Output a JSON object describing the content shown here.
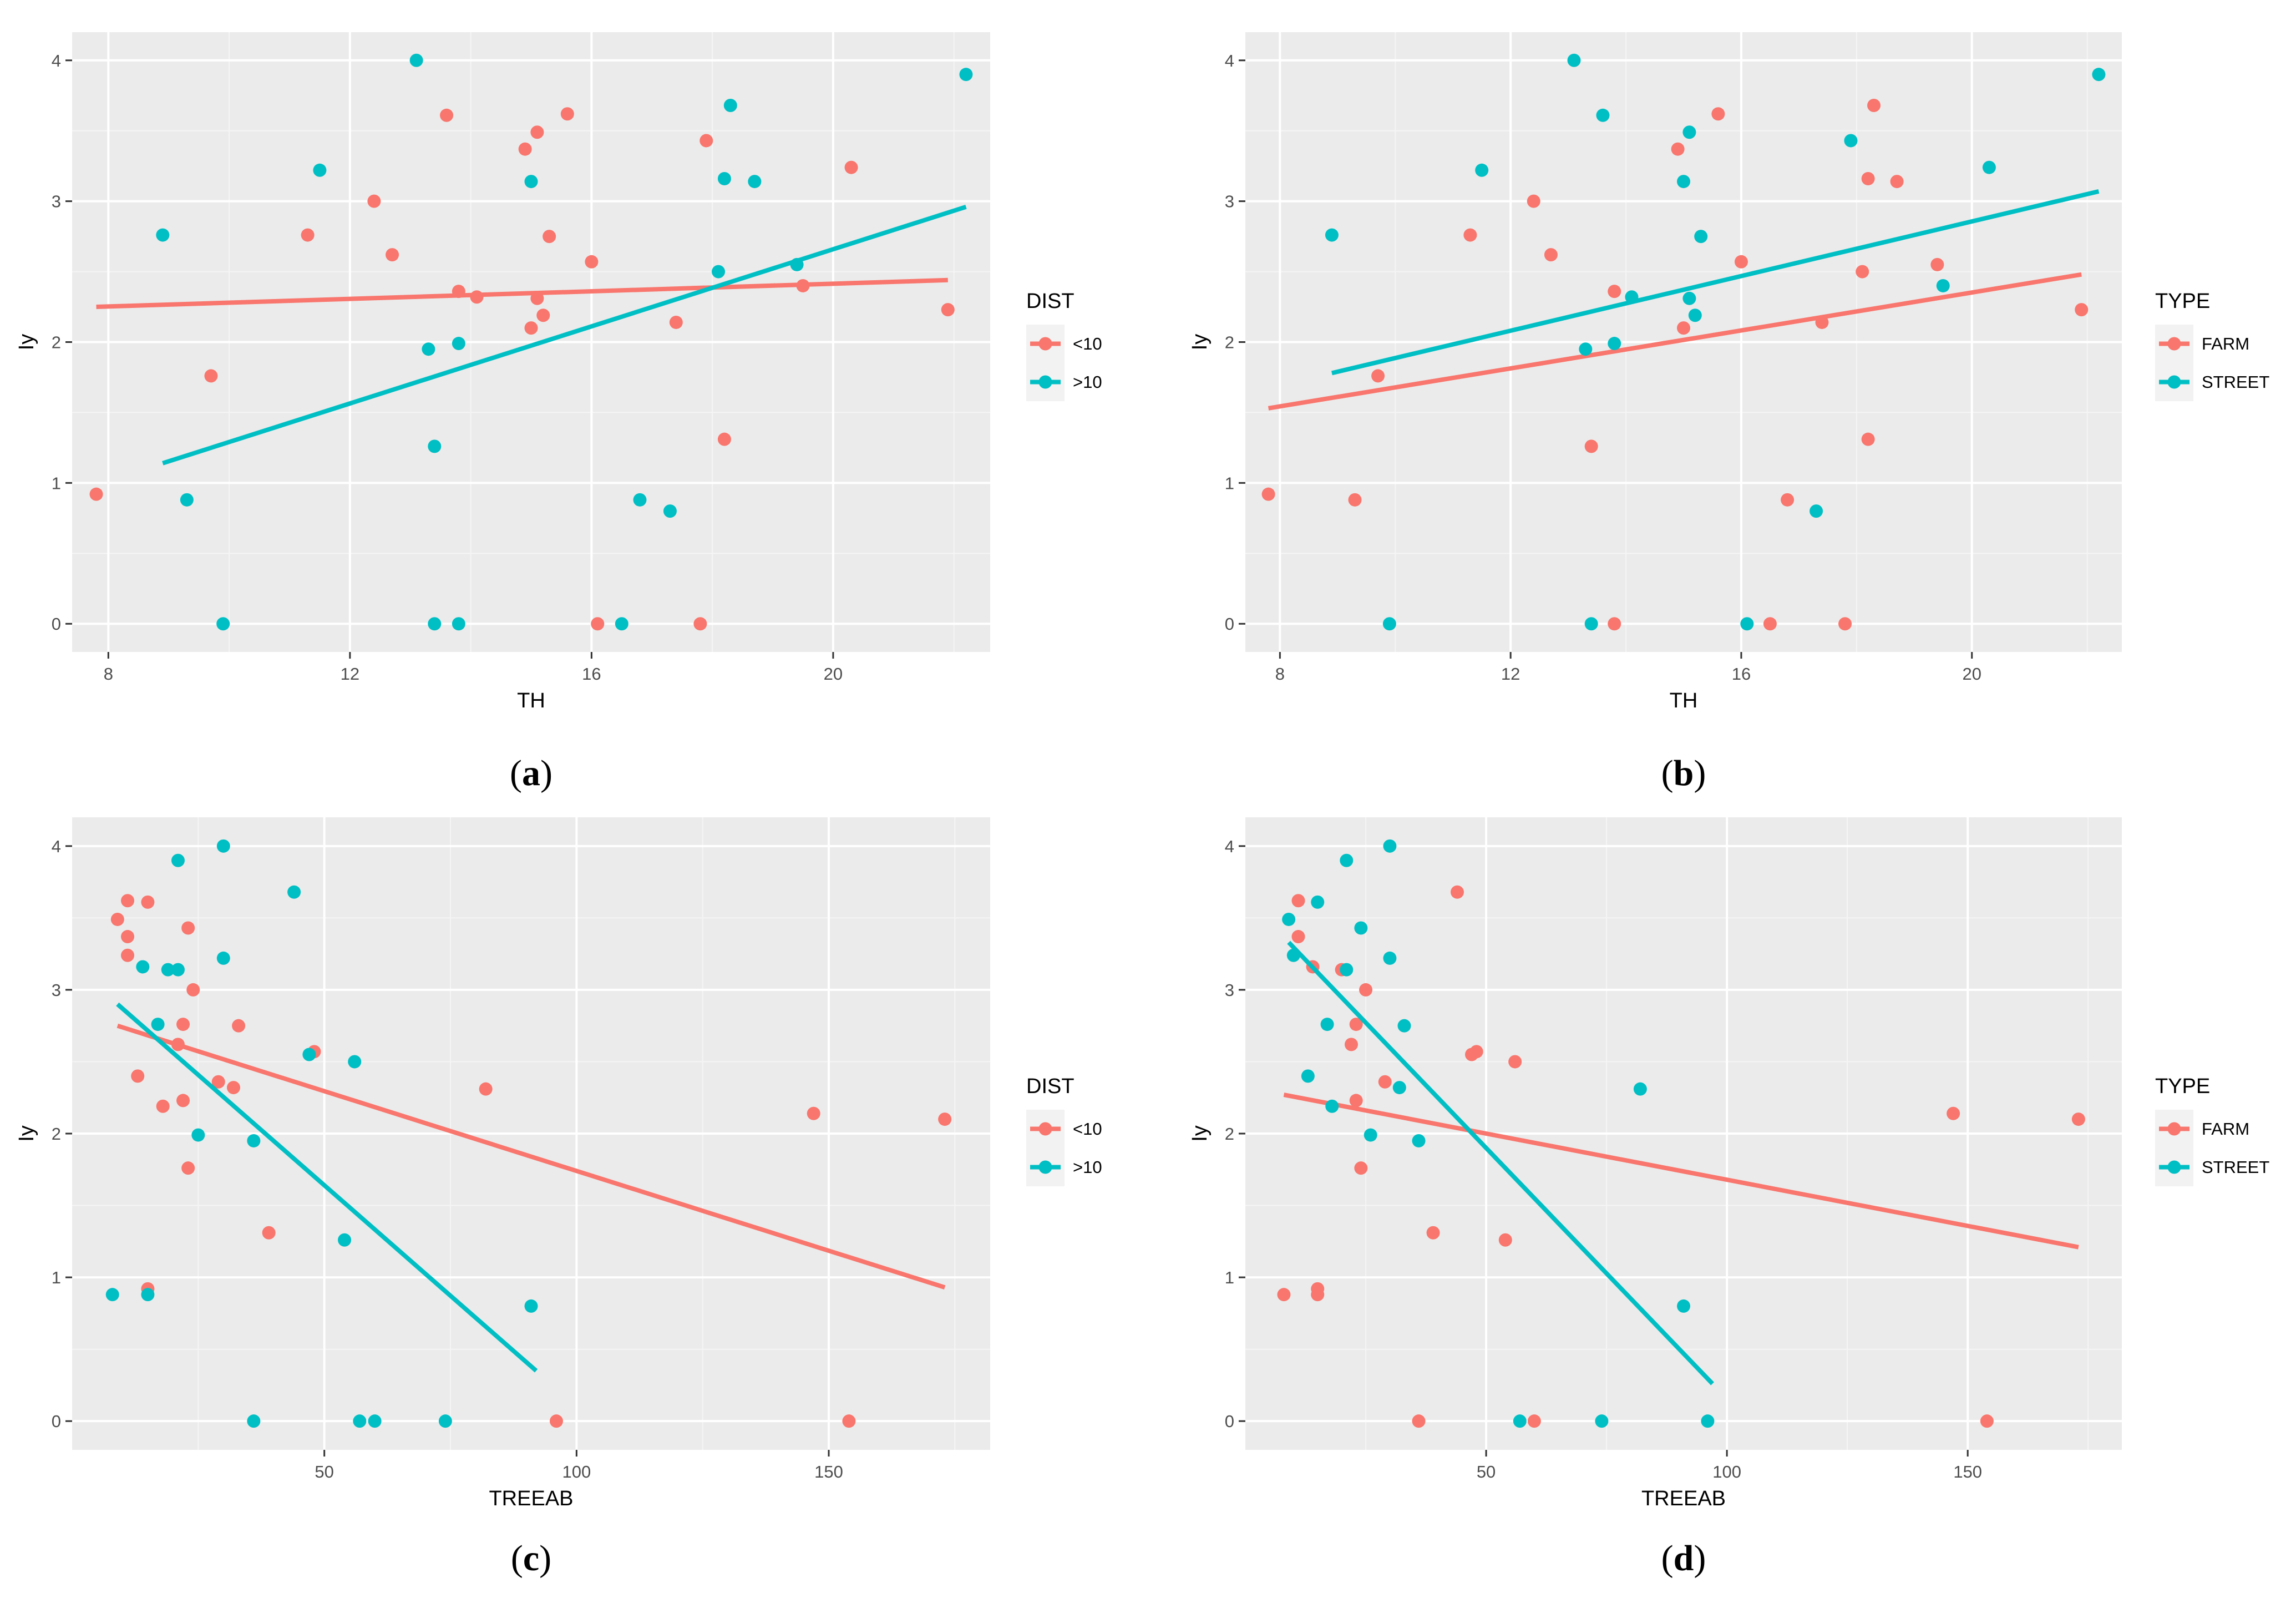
{
  "colors": {
    "group1": "#f8766d",
    "group2": "#00bfc4"
  },
  "chart_data": [
    {
      "type": "scatter",
      "caption": {
        "open": "(",
        "letter": "a",
        "close": ")"
      },
      "xlabel": "TH",
      "ylabel": "Iy",
      "xlim": [
        7.4,
        22.6
      ],
      "ylim": [
        -0.2,
        4.2
      ],
      "xticks": [
        "8",
        "12",
        "16",
        "20"
      ],
      "xtick_values": [
        8,
        12,
        16,
        20
      ],
      "yticks": [
        "0",
        "1",
        "2",
        "3",
        "4"
      ],
      "ytick_values": [
        0,
        1,
        2,
        3,
        4
      ],
      "legend": {
        "title": "DIST",
        "entries": [
          "<10",
          ">10"
        ]
      },
      "series": [
        {
          "name": "<10",
          "points": [
            [
              7.8,
              0.92
            ],
            [
              9.7,
              1.76
            ],
            [
              11.3,
              2.76
            ],
            [
              12.4,
              3.0
            ],
            [
              12.7,
              2.62
            ],
            [
              13.6,
              3.61
            ],
            [
              13.8,
              2.36
            ],
            [
              14.1,
              2.32
            ],
            [
              14.9,
              3.37
            ],
            [
              15.0,
              2.1
            ],
            [
              15.1,
              3.49
            ],
            [
              15.1,
              2.31
            ],
            [
              15.2,
              2.19
            ],
            [
              15.3,
              2.75
            ],
            [
              15.6,
              3.62
            ],
            [
              16.0,
              2.57
            ],
            [
              16.1,
              0.0
            ],
            [
              17.4,
              2.14
            ],
            [
              17.8,
              0.0
            ],
            [
              17.9,
              3.43
            ],
            [
              18.2,
              1.31
            ],
            [
              19.5,
              2.4
            ],
            [
              20.3,
              3.24
            ],
            [
              21.9,
              2.23
            ]
          ],
          "fit": {
            "x": [
              7.8,
              21.9
            ],
            "y": [
              2.25,
              2.44
            ]
          }
        },
        {
          "name": ">10",
          "points": [
            [
              8.9,
              2.76
            ],
            [
              9.3,
              0.88
            ],
            [
              9.9,
              0.0
            ],
            [
              11.5,
              3.22
            ],
            [
              13.1,
              4.0
            ],
            [
              13.3,
              1.95
            ],
            [
              13.4,
              1.26
            ],
            [
              13.4,
              0.0
            ],
            [
              13.8,
              1.99
            ],
            [
              13.8,
              0.0
            ],
            [
              15.0,
              3.14
            ],
            [
              16.5,
              0.0
            ],
            [
              16.8,
              0.88
            ],
            [
              17.3,
              0.8
            ],
            [
              18.1,
              2.5
            ],
            [
              18.2,
              3.16
            ],
            [
              18.3,
              3.68
            ],
            [
              18.7,
              3.14
            ],
            [
              19.4,
              2.55
            ],
            [
              22.2,
              3.9
            ]
          ],
          "fit": {
            "x": [
              8.9,
              22.2
            ],
            "y": [
              1.14,
              2.96
            ]
          }
        }
      ]
    },
    {
      "type": "scatter",
      "caption": {
        "open": "(",
        "letter": "b",
        "close": ")"
      },
      "xlabel": "TH",
      "ylabel": "Iy",
      "xlim": [
        7.4,
        22.6
      ],
      "ylim": [
        -0.2,
        4.2
      ],
      "xticks": [
        "8",
        "12",
        "16",
        "20"
      ],
      "xtick_values": [
        8,
        12,
        16,
        20
      ],
      "yticks": [
        "0",
        "1",
        "2",
        "3",
        "4"
      ],
      "ytick_values": [
        0,
        1,
        2,
        3,
        4
      ],
      "legend": {
        "title": "TYPE",
        "entries": [
          "FARM",
          "STREET"
        ]
      },
      "series": [
        {
          "name": "FARM",
          "points": [
            [
              7.8,
              0.92
            ],
            [
              9.7,
              1.76
            ],
            [
              9.3,
              0.88
            ],
            [
              11.3,
              2.76
            ],
            [
              12.4,
              3.0
            ],
            [
              12.7,
              2.62
            ],
            [
              13.4,
              1.26
            ],
            [
              13.8,
              2.36
            ],
            [
              13.8,
              0.0
            ],
            [
              14.9,
              3.37
            ],
            [
              15.0,
              2.1
            ],
            [
              15.6,
              3.62
            ],
            [
              16.0,
              2.57
            ],
            [
              16.5,
              0.0
            ],
            [
              16.8,
              0.88
            ],
            [
              17.4,
              2.14
            ],
            [
              17.8,
              0.0
            ],
            [
              18.1,
              2.5
            ],
            [
              18.2,
              3.16
            ],
            [
              18.3,
              3.68
            ],
            [
              18.2,
              1.31
            ],
            [
              18.7,
              3.14
            ],
            [
              19.4,
              2.55
            ],
            [
              21.9,
              2.23
            ]
          ],
          "fit": {
            "x": [
              7.8,
              21.9
            ],
            "y": [
              1.53,
              2.48
            ]
          }
        },
        {
          "name": "STREET",
          "points": [
            [
              8.9,
              2.76
            ],
            [
              9.9,
              0.0
            ],
            [
              11.5,
              3.22
            ],
            [
              13.1,
              4.0
            ],
            [
              13.3,
              1.95
            ],
            [
              13.4,
              0.0
            ],
            [
              13.6,
              3.61
            ],
            [
              13.8,
              1.99
            ],
            [
              14.1,
              2.32
            ],
            [
              15.0,
              3.14
            ],
            [
              15.1,
              3.49
            ],
            [
              15.1,
              2.31
            ],
            [
              15.2,
              2.19
            ],
            [
              15.3,
              2.75
            ],
            [
              16.1,
              0.0
            ],
            [
              17.3,
              0.8
            ],
            [
              17.9,
              3.43
            ],
            [
              19.5,
              2.4
            ],
            [
              20.3,
              3.24
            ],
            [
              22.2,
              3.9
            ]
          ],
          "fit": {
            "x": [
              8.9,
              22.2
            ],
            "y": [
              1.78,
              3.07
            ]
          }
        }
      ]
    },
    {
      "type": "scatter",
      "caption": {
        "open": "(",
        "letter": "c",
        "close": ")"
      },
      "xlabel": "TREEAB",
      "ylabel": "Iy",
      "xlim": [
        0,
        182
      ],
      "ylim": [
        -0.2,
        4.2
      ],
      "xticks": [
        "50",
        "100",
        "150"
      ],
      "xtick_values": [
        50,
        100,
        150
      ],
      "yticks": [
        "0",
        "1",
        "2",
        "3",
        "4"
      ],
      "ytick_values": [
        0,
        1,
        2,
        3,
        4
      ],
      "legend": {
        "title": "DIST",
        "entries": [
          "<10",
          ">10"
        ]
      },
      "series": [
        {
          "name": "<10",
          "points": [
            [
              9,
              3.49
            ],
            [
              11,
              3.37
            ],
            [
              11,
              3.24
            ],
            [
              11,
              3.62
            ],
            [
              13,
              2.4
            ],
            [
              15,
              3.61
            ],
            [
              15,
              0.92
            ],
            [
              18,
              2.19
            ],
            [
              21,
              2.62
            ],
            [
              22,
              2.76
            ],
            [
              22,
              2.23
            ],
            [
              23,
              1.76
            ],
            [
              23,
              3.43
            ],
            [
              24,
              3.0
            ],
            [
              29,
              2.36
            ],
            [
              32,
              2.32
            ],
            [
              33,
              2.75
            ],
            [
              39,
              1.31
            ],
            [
              48,
              2.57
            ],
            [
              82,
              2.31
            ],
            [
              96,
              0.0
            ],
            [
              147,
              2.14
            ],
            [
              154,
              0.0
            ],
            [
              173,
              2.1
            ]
          ],
          "fit": {
            "x": [
              9,
              173
            ],
            "y": [
              2.75,
              0.93
            ]
          }
        },
        {
          "name": ">10",
          "points": [
            [
              8,
              0.88
            ],
            [
              15,
              0.88
            ],
            [
              14,
              3.16
            ],
            [
              17,
              2.76
            ],
            [
              19,
              3.14
            ],
            [
              21,
              3.14
            ],
            [
              21,
              3.9
            ],
            [
              25,
              1.99
            ],
            [
              30,
              3.22
            ],
            [
              30,
              4.0
            ],
            [
              36,
              1.95
            ],
            [
              36,
              0.0
            ],
            [
              44,
              3.68
            ],
            [
              47,
              2.55
            ],
            [
              56,
              2.5
            ],
            [
              54,
              1.26
            ],
            [
              57,
              0.0
            ],
            [
              60,
              0.0
            ],
            [
              74,
              0.0
            ],
            [
              91,
              0.8
            ]
          ],
          "fit": {
            "x": [
              9,
              92
            ],
            "y": [
              2.9,
              0.35
            ]
          }
        }
      ]
    },
    {
      "type": "scatter",
      "caption": {
        "open": "(",
        "letter": "d",
        "close": ")"
      },
      "xlabel": "TREEAB",
      "ylabel": "Iy",
      "xlim": [
        0,
        182
      ],
      "ylim": [
        -0.2,
        4.2
      ],
      "xticks": [
        "50",
        "100",
        "150"
      ],
      "xtick_values": [
        50,
        100,
        150
      ],
      "yticks": [
        "0",
        "1",
        "2",
        "3",
        "4"
      ],
      "ytick_values": [
        0,
        1,
        2,
        3,
        4
      ],
      "legend": {
        "title": "TYPE",
        "entries": [
          "FARM",
          "STREET"
        ]
      },
      "series": [
        {
          "name": "FARM",
          "points": [
            [
              8,
              0.88
            ],
            [
              11,
              3.37
            ],
            [
              11,
              3.62
            ],
            [
              14,
              3.16
            ],
            [
              15,
              0.92
            ],
            [
              15,
              0.88
            ],
            [
              20,
              3.14
            ],
            [
              22,
              2.62
            ],
            [
              23,
              2.76
            ],
            [
              23,
              2.23
            ],
            [
              24,
              1.76
            ],
            [
              25,
              3.0
            ],
            [
              29,
              2.36
            ],
            [
              36,
              0.0
            ],
            [
              39,
              1.31
            ],
            [
              44,
              3.68
            ],
            [
              47,
              2.55
            ],
            [
              48,
              2.57
            ],
            [
              54,
              1.26
            ],
            [
              56,
              2.5
            ],
            [
              60,
              0.0
            ],
            [
              147,
              2.14
            ],
            [
              154,
              0.0
            ],
            [
              173,
              2.1
            ]
          ],
          "fit": {
            "x": [
              8,
              173
            ],
            "y": [
              2.27,
              1.21
            ]
          }
        },
        {
          "name": "STREET",
          "points": [
            [
              9,
              3.49
            ],
            [
              10,
              3.24
            ],
            [
              13,
              2.4
            ],
            [
              15,
              3.61
            ],
            [
              17,
              2.76
            ],
            [
              18,
              2.19
            ],
            [
              21,
              3.14
            ],
            [
              21,
              3.9
            ],
            [
              24,
              3.43
            ],
            [
              26,
              1.99
            ],
            [
              30,
              3.22
            ],
            [
              30,
              4.0
            ],
            [
              32,
              2.32
            ],
            [
              33,
              2.75
            ],
            [
              36,
              1.95
            ],
            [
              57,
              0.0
            ],
            [
              74,
              0.0
            ],
            [
              82,
              2.31
            ],
            [
              91,
              0.8
            ],
            [
              96,
              0.0
            ]
          ],
          "fit": {
            "x": [
              9,
              97
            ],
            "y": [
              3.33,
              0.26
            ]
          }
        }
      ]
    }
  ]
}
